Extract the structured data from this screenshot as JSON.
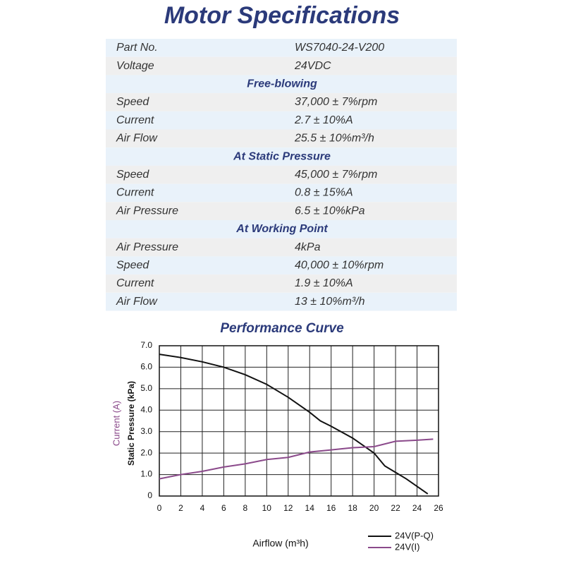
{
  "header": {
    "title": "Motor Specifications"
  },
  "table": {
    "groups": [
      {
        "rows": [
          [
            "Part No.",
            "WS7040-24-V200"
          ],
          [
            "Voltage",
            "24VDC"
          ]
        ]
      },
      {
        "heading": "Free-blowing",
        "rows": [
          [
            "Speed",
            "37,000 ± 7%rpm"
          ],
          [
            "Current",
            "2.7 ± 10%A"
          ],
          [
            "Air Flow",
            "25.5 ± 10%m³/h"
          ]
        ]
      },
      {
        "heading": "At Static Pressure",
        "rows": [
          [
            "Speed",
            "45,000 ± 7%rpm"
          ],
          [
            "Current",
            "0.8 ± 15%A"
          ],
          [
            "Air Pressure",
            "6.5 ± 10%kPa"
          ]
        ]
      },
      {
        "heading": "At Working Point",
        "rows": [
          [
            "Air Pressure",
            "4kPa"
          ],
          [
            "Speed",
            "40,000 ± 10%rpm"
          ],
          [
            "Current",
            "1.9 ± 10%A"
          ],
          [
            "Air Flow",
            "13 ± 10%m³/h"
          ]
        ]
      }
    ]
  },
  "chart_data": {
    "type": "line",
    "title": "Performance Curve",
    "x_label": "Airflow (m³h)",
    "y_label": "Static Pressure (kPa)",
    "y_label_2": "Current (A)",
    "xlim": [
      0,
      26
    ],
    "xticks": [
      0,
      2,
      4,
      6,
      8,
      10,
      12,
      14,
      16,
      18,
      20,
      22,
      24,
      26
    ],
    "ylim": [
      0,
      7
    ],
    "yticks": [
      0,
      {
        "value": 1,
        "label": "1.0"
      },
      {
        "value": 2,
        "label": "2.0"
      },
      {
        "value": 3,
        "label": "3.0"
      },
      {
        "value": 4,
        "label": "4.0"
      },
      {
        "value": 5,
        "label": "5.0"
      },
      {
        "value": 6,
        "label": "6.0"
      },
      {
        "value": 7,
        "label": "7.0"
      }
    ],
    "grid": true,
    "series": [
      {
        "name": "24V(P-Q)",
        "color": "#111111",
        "x": [
          0,
          2,
          4,
          6,
          8,
          10,
          12,
          14,
          15,
          16,
          18,
          20,
          21,
          22,
          23,
          24,
          25
        ],
        "values": [
          6.6,
          6.45,
          6.25,
          6.0,
          5.65,
          5.2,
          4.6,
          3.9,
          3.5,
          3.25,
          2.7,
          2.0,
          1.4,
          1.1,
          0.8,
          0.45,
          0.1
        ]
      },
      {
        "name": "24V(I)",
        "color": "#8b4a8b",
        "x": [
          0,
          2,
          4,
          6,
          8,
          10,
          12,
          14,
          16,
          18,
          20,
          22,
          24,
          25.5
        ],
        "values": [
          0.8,
          1.0,
          1.15,
          1.35,
          1.5,
          1.7,
          1.8,
          2.05,
          2.15,
          2.25,
          2.3,
          2.55,
          2.6,
          2.65
        ]
      }
    ]
  }
}
